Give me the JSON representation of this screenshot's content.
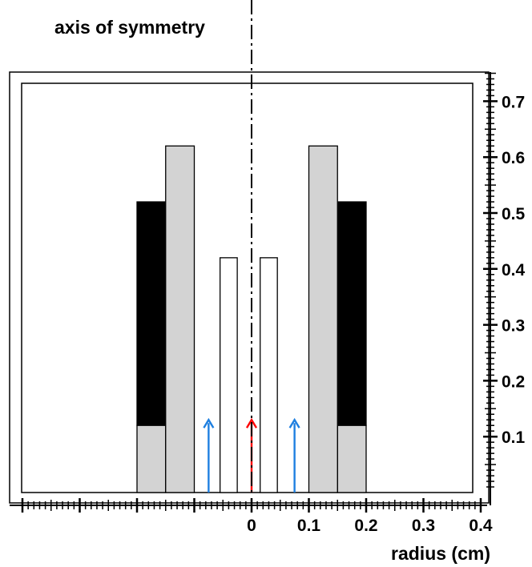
{
  "diagram": {
    "symmetry_label": "axis of symmetry",
    "x_axis_label": "radius (cm)",
    "colors": {
      "outer_sleeve": "#000000",
      "tube": "#d3d3d3",
      "inner_tube": "#ffffff",
      "outline": "#000000",
      "center_arrow": "#ff0000",
      "side_arrows": "#1e7fe0"
    }
  },
  "chart_data": {
    "type": "diagram",
    "x_axis": {
      "label": "radius (cm)",
      "range": [
        -0.4,
        0.4
      ],
      "tick_labels": [
        "0",
        "0.1",
        "0.2",
        "0.3",
        "0.4"
      ],
      "tick_values": [
        0,
        0.1,
        0.2,
        0.3,
        0.4
      ]
    },
    "y_axis": {
      "label": "",
      "range": [
        0,
        0.75
      ],
      "tick_labels": [
        "0.1",
        "0.2",
        "0.3",
        "0.4",
        "0.5",
        "0.6",
        "0.7"
      ],
      "tick_values": [
        0.1,
        0.2,
        0.3,
        0.4,
        0.5,
        0.6,
        0.7
      ],
      "position": "right"
    },
    "domain": {
      "x": [
        -0.4,
        0.4
      ],
      "y": [
        0.0,
        0.72
      ]
    },
    "regions": [
      {
        "name": "outer-sleeve-left",
        "fill": "#000000",
        "x0": -0.2,
        "x1": -0.15,
        "y0": 0.12,
        "y1": 0.52
      },
      {
        "name": "outer-sleeve-right",
        "fill": "#000000",
        "x0": 0.15,
        "x1": 0.2,
        "y0": 0.12,
        "y1": 0.52
      },
      {
        "name": "sleeve-base-left",
        "fill": "#d3d3d3",
        "x0": -0.2,
        "x1": -0.15,
        "y0": 0.0,
        "y1": 0.12
      },
      {
        "name": "sleeve-base-right",
        "fill": "#d3d3d3",
        "x0": 0.15,
        "x1": 0.2,
        "y0": 0.0,
        "y1": 0.12
      },
      {
        "name": "tube-left",
        "fill": "#d3d3d3",
        "x0": -0.15,
        "x1": -0.1,
        "y0": 0.0,
        "y1": 0.62
      },
      {
        "name": "tube-right",
        "fill": "#d3d3d3",
        "x0": 0.1,
        "x1": 0.15,
        "y0": 0.0,
        "y1": 0.62
      },
      {
        "name": "inner-tube-left",
        "fill": "#ffffff",
        "x0": -0.055,
        "x1": -0.025,
        "y0": 0.0,
        "y1": 0.42
      },
      {
        "name": "inner-tube-right",
        "fill": "#ffffff",
        "x0": 0.015,
        "x1": 0.045,
        "y0": 0.0,
        "y1": 0.42
      }
    ],
    "arrows": [
      {
        "name": "flow-arrow-left",
        "color": "#1e7fe0",
        "x": -0.075,
        "y0": 0.0,
        "y1": 0.13
      },
      {
        "name": "flow-arrow-center",
        "color": "#ff0000",
        "x": 0.0,
        "y0": 0.0,
        "y1": 0.13
      },
      {
        "name": "flow-arrow-right",
        "color": "#1e7fe0",
        "x": 0.075,
        "y0": 0.0,
        "y1": 0.13
      }
    ]
  }
}
